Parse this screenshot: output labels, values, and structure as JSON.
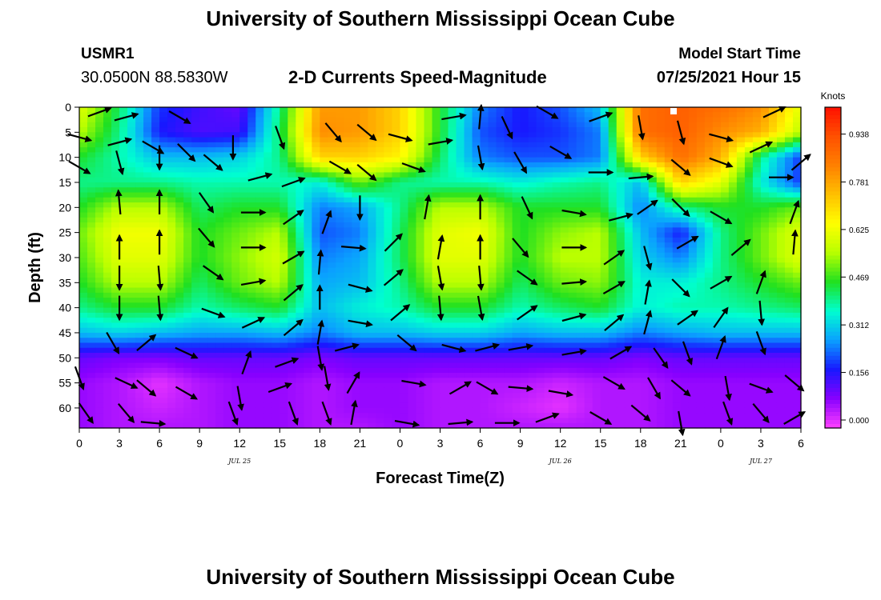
{
  "header": {
    "title": "University of Southern Mississippi Ocean Cube",
    "station_id": "USMR1",
    "station_coords": "30.0500N  88.5830W",
    "product": "2-D Currents Speed-Magnitude",
    "model_start_label": "Model Start Time",
    "model_start_value": "07/25/2021 Hour 15"
  },
  "footer": {
    "title": "University of Southern Mississippi Ocean Cube"
  },
  "chart_data": {
    "type": "heatmap",
    "title": "2-D Currents Speed-Magnitude",
    "xlabel": "Forecast Time(Z)",
    "ylabel": "Depth (ft)",
    "colorbar_label": "Knots",
    "x_tick_labels": [
      "0",
      "3",
      "6",
      "9",
      "12",
      "15",
      "18",
      "21",
      "0",
      "3",
      "6",
      "9",
      "12",
      "15",
      "18",
      "21",
      "0",
      "3",
      "6"
    ],
    "x_hours_range": [
      0,
      54
    ],
    "date_labels": [
      {
        "text": "JUL 25",
        "hour": 12
      },
      {
        "text": "JUL 26",
        "hour": 36
      },
      {
        "text": "JUL 27",
        "hour": 51
      }
    ],
    "y_ticks": [
      0,
      5,
      10,
      15,
      20,
      25,
      30,
      35,
      40,
      45,
      50,
      55,
      60
    ],
    "ylim": [
      0,
      64
    ],
    "y_inverted": true,
    "colorbar_ticks": [
      0.0,
      0.156,
      0.312,
      0.469,
      0.625,
      0.781,
      0.938
    ],
    "colorbar_range": [
      0,
      1.0
    ],
    "colormap": [
      "#ff40ff",
      "#8800ff",
      "#1818ff",
      "#0aa0ff",
      "#00ffd0",
      "#20e020",
      "#b8ff00",
      "#ffff00",
      "#ffc000",
      "#ff8000",
      "#ff5000",
      "#ff1000"
    ],
    "speed_grid_depths": [
      0,
      5,
      10,
      15,
      20,
      25,
      30,
      35,
      40,
      45,
      50,
      55,
      60,
      64
    ],
    "speed_grid_hours": [
      0,
      3,
      6,
      9,
      12,
      15,
      18,
      21,
      24,
      27,
      30,
      33,
      36,
      39,
      42,
      45,
      48,
      51,
      54
    ],
    "speed_grid": [
      [
        0.6,
        0.42,
        0.2,
        0.15,
        0.12,
        0.4,
        0.78,
        0.78,
        0.7,
        0.45,
        0.25,
        0.18,
        0.22,
        0.3,
        0.85,
        0.88,
        0.85,
        0.8,
        0.6
      ],
      [
        0.55,
        0.4,
        0.18,
        0.14,
        0.15,
        0.42,
        0.8,
        0.78,
        0.7,
        0.45,
        0.22,
        0.18,
        0.2,
        0.25,
        0.85,
        0.88,
        0.8,
        0.75,
        0.55
      ],
      [
        0.45,
        0.38,
        0.3,
        0.3,
        0.32,
        0.4,
        0.7,
        0.7,
        0.65,
        0.42,
        0.25,
        0.22,
        0.22,
        0.25,
        0.7,
        0.85,
        0.75,
        0.4,
        0.2
      ],
      [
        0.4,
        0.4,
        0.4,
        0.38,
        0.38,
        0.38,
        0.35,
        0.5,
        0.4,
        0.38,
        0.38,
        0.35,
        0.38,
        0.4,
        0.3,
        0.7,
        0.6,
        0.35,
        0.2
      ],
      [
        0.45,
        0.55,
        0.55,
        0.42,
        0.45,
        0.45,
        0.25,
        0.28,
        0.4,
        0.55,
        0.55,
        0.45,
        0.45,
        0.45,
        0.25,
        0.4,
        0.45,
        0.45,
        0.5
      ],
      [
        0.5,
        0.62,
        0.62,
        0.45,
        0.5,
        0.55,
        0.22,
        0.25,
        0.42,
        0.6,
        0.62,
        0.45,
        0.52,
        0.55,
        0.3,
        0.18,
        0.4,
        0.5,
        0.6
      ],
      [
        0.48,
        0.6,
        0.6,
        0.45,
        0.52,
        0.58,
        0.25,
        0.28,
        0.42,
        0.6,
        0.6,
        0.45,
        0.55,
        0.55,
        0.32,
        0.25,
        0.4,
        0.5,
        0.6
      ],
      [
        0.45,
        0.55,
        0.55,
        0.42,
        0.5,
        0.55,
        0.28,
        0.3,
        0.4,
        0.55,
        0.55,
        0.42,
        0.5,
        0.52,
        0.35,
        0.35,
        0.4,
        0.45,
        0.5
      ],
      [
        0.4,
        0.45,
        0.45,
        0.38,
        0.42,
        0.45,
        0.3,
        0.35,
        0.38,
        0.45,
        0.45,
        0.38,
        0.42,
        0.45,
        0.35,
        0.38,
        0.38,
        0.4,
        0.42
      ],
      [
        0.3,
        0.32,
        0.3,
        0.28,
        0.28,
        0.3,
        0.25,
        0.3,
        0.3,
        0.32,
        0.32,
        0.28,
        0.3,
        0.3,
        0.25,
        0.28,
        0.3,
        0.3,
        0.3
      ],
      [
        0.12,
        0.1,
        0.1,
        0.12,
        0.12,
        0.12,
        0.1,
        0.12,
        0.12,
        0.12,
        0.12,
        0.12,
        0.12,
        0.12,
        0.1,
        0.12,
        0.12,
        0.12,
        0.12
      ],
      [
        0.08,
        0.06,
        0.02,
        0.06,
        0.08,
        0.08,
        0.06,
        0.08,
        0.08,
        0.06,
        0.06,
        0.06,
        0.04,
        0.06,
        0.06,
        0.08,
        0.08,
        0.08,
        0.08
      ],
      [
        0.08,
        0.06,
        0.04,
        0.06,
        0.08,
        0.08,
        0.06,
        0.08,
        0.08,
        0.06,
        0.06,
        0.04,
        0.02,
        0.06,
        0.06,
        0.08,
        0.08,
        0.08,
        0.08
      ],
      [
        0.08,
        0.06,
        0.06,
        0.06,
        0.08,
        0.08,
        0.06,
        0.06,
        0.08,
        0.06,
        0.06,
        0.06,
        0.06,
        0.06,
        0.06,
        0.08,
        0.08,
        0.08,
        0.08
      ]
    ],
    "vectors": [
      {
        "hour": 1.5,
        "depth": 1,
        "angle": 20
      },
      {
        "hour": 3.5,
        "depth": 2,
        "angle": 15
      },
      {
        "hour": 7.5,
        "depth": 2,
        "angle": -30
      },
      {
        "hour": 0.0,
        "depth": 6,
        "angle": -15
      },
      {
        "hour": 3.0,
        "depth": 7,
        "angle": 15
      },
      {
        "hour": 5.5,
        "depth": 8,
        "angle": -30
      },
      {
        "hour": 8.0,
        "depth": 9,
        "angle": -45
      },
      {
        "hour": 11.5,
        "depth": 8,
        "angle": -90
      },
      {
        "hour": 15.0,
        "depth": 6,
        "angle": -70
      },
      {
        "hour": 19.0,
        "depth": 5,
        "angle": -50
      },
      {
        "hour": 21.5,
        "depth": 5,
        "angle": -40
      },
      {
        "hour": 24.0,
        "depth": 6,
        "angle": -15
      },
      {
        "hour": 28.0,
        "depth": 2,
        "angle": 10
      },
      {
        "hour": 30.0,
        "depth": 2,
        "angle": 85
      },
      {
        "hour": 32.0,
        "depth": 4,
        "angle": -65
      },
      {
        "hour": 35.0,
        "depth": 1,
        "angle": -30
      },
      {
        "hour": 39.0,
        "depth": 2,
        "angle": 20
      },
      {
        "hour": 42.0,
        "depth": 4,
        "angle": -80
      },
      {
        "hour": 45.0,
        "depth": 5,
        "angle": -75
      },
      {
        "hour": 48.0,
        "depth": 6,
        "angle": -15
      },
      {
        "hour": 52.0,
        "depth": 1,
        "angle": 25
      },
      {
        "hour": 0.0,
        "depth": 12,
        "angle": -30
      },
      {
        "hour": 3.0,
        "depth": 11,
        "angle": -75
      },
      {
        "hour": 6.0,
        "depth": 10,
        "angle": -90
      },
      {
        "hour": 10.0,
        "depth": 11,
        "angle": -40
      },
      {
        "hour": 13.5,
        "depth": 14,
        "angle": 15
      },
      {
        "hour": 16.0,
        "depth": 15,
        "angle": 20
      },
      {
        "hour": 19.5,
        "depth": 12,
        "angle": -30
      },
      {
        "hour": 21.5,
        "depth": 13,
        "angle": -40
      },
      {
        "hour": 25.0,
        "depth": 12,
        "angle": -20
      },
      {
        "hour": 27.0,
        "depth": 7,
        "angle": 10
      },
      {
        "hour": 30.0,
        "depth": 10,
        "angle": -80
      },
      {
        "hour": 33.0,
        "depth": 11,
        "angle": -60
      },
      {
        "hour": 36.0,
        "depth": 9,
        "angle": -30
      },
      {
        "hour": 39.0,
        "depth": 13,
        "angle": 0
      },
      {
        "hour": 42.0,
        "depth": 14,
        "angle": 5
      },
      {
        "hour": 45.0,
        "depth": 12,
        "angle": -40
      },
      {
        "hour": 48.0,
        "depth": 11,
        "angle": -20
      },
      {
        "hour": 51.0,
        "depth": 8,
        "angle": 25
      },
      {
        "hour": 52.5,
        "depth": 14,
        "angle": 0
      },
      {
        "hour": 54.0,
        "depth": 11,
        "angle": 40
      },
      {
        "hour": 3.0,
        "depth": 19,
        "angle": 95
      },
      {
        "hour": 6.0,
        "depth": 19,
        "angle": 90
      },
      {
        "hour": 9.5,
        "depth": 19,
        "angle": -55
      },
      {
        "hour": 13.0,
        "depth": 21,
        "angle": 0
      },
      {
        "hour": 16.0,
        "depth": 22,
        "angle": 35
      },
      {
        "hour": 18.5,
        "depth": 23,
        "angle": 70
      },
      {
        "hour": 21.0,
        "depth": 20,
        "angle": -90
      },
      {
        "hour": 26.0,
        "depth": 20,
        "angle": 80
      },
      {
        "hour": 30.0,
        "depth": 20,
        "angle": 90
      },
      {
        "hour": 33.5,
        "depth": 20,
        "angle": -65
      },
      {
        "hour": 37.0,
        "depth": 21,
        "angle": -10
      },
      {
        "hour": 40.5,
        "depth": 22,
        "angle": 15
      },
      {
        "hour": 42.5,
        "depth": 20,
        "angle": 35
      },
      {
        "hour": 45.0,
        "depth": 20,
        "angle": -45
      },
      {
        "hour": 48.0,
        "depth": 22,
        "angle": -30
      },
      {
        "hour": 53.5,
        "depth": 21,
        "angle": 70
      },
      {
        "hour": 3.0,
        "depth": 28,
        "angle": 90
      },
      {
        "hour": 6.0,
        "depth": 27,
        "angle": 90
      },
      {
        "hour": 9.5,
        "depth": 26,
        "angle": -50
      },
      {
        "hour": 13.0,
        "depth": 28,
        "angle": 0
      },
      {
        "hour": 16.0,
        "depth": 30,
        "angle": 30
      },
      {
        "hour": 18.0,
        "depth": 31,
        "angle": 85
      },
      {
        "hour": 20.5,
        "depth": 28,
        "angle": -5
      },
      {
        "hour": 23.5,
        "depth": 27,
        "angle": 45
      },
      {
        "hour": 27.0,
        "depth": 28,
        "angle": 80
      },
      {
        "hour": 30.0,
        "depth": 28,
        "angle": 90
      },
      {
        "hour": 33.0,
        "depth": 28,
        "angle": -50
      },
      {
        "hour": 37.0,
        "depth": 28,
        "angle": 0
      },
      {
        "hour": 40.0,
        "depth": 30,
        "angle": 35
      },
      {
        "hour": 42.5,
        "depth": 30,
        "angle": -75
      },
      {
        "hour": 45.5,
        "depth": 27,
        "angle": 30
      },
      {
        "hour": 49.5,
        "depth": 28,
        "angle": 40
      },
      {
        "hour": 53.5,
        "depth": 27,
        "angle": 85
      },
      {
        "hour": 3.0,
        "depth": 34,
        "angle": -90
      },
      {
        "hour": 6.0,
        "depth": 34,
        "angle": -85
      },
      {
        "hour": 10.0,
        "depth": 33,
        "angle": -35
      },
      {
        "hour": 13.0,
        "depth": 35,
        "angle": 10
      },
      {
        "hour": 16.0,
        "depth": 37,
        "angle": 40
      },
      {
        "hour": 18.0,
        "depth": 38,
        "angle": 90
      },
      {
        "hour": 21.0,
        "depth": 36,
        "angle": -15
      },
      {
        "hour": 23.5,
        "depth": 34,
        "angle": 40
      },
      {
        "hour": 27.0,
        "depth": 34,
        "angle": -80
      },
      {
        "hour": 30.0,
        "depth": 34,
        "angle": -85
      },
      {
        "hour": 33.5,
        "depth": 34,
        "angle": -35
      },
      {
        "hour": 37.0,
        "depth": 35,
        "angle": 5
      },
      {
        "hour": 40.0,
        "depth": 36,
        "angle": 30
      },
      {
        "hour": 42.5,
        "depth": 37,
        "angle": 80
      },
      {
        "hour": 45.0,
        "depth": 36,
        "angle": -45
      },
      {
        "hour": 48.0,
        "depth": 35,
        "angle": 30
      },
      {
        "hour": 51.0,
        "depth": 35,
        "angle": 70
      },
      {
        "hour": 3.0,
        "depth": 40,
        "angle": -90
      },
      {
        "hour": 6.0,
        "depth": 40,
        "angle": -85
      },
      {
        "hour": 10.0,
        "depth": 41,
        "angle": -20
      },
      {
        "hour": 13.0,
        "depth": 43,
        "angle": 25
      },
      {
        "hour": 16.0,
        "depth": 44,
        "angle": 40
      },
      {
        "hour": 18.0,
        "depth": 45,
        "angle": 80
      },
      {
        "hour": 21.0,
        "depth": 43,
        "angle": -10
      },
      {
        "hour": 24.0,
        "depth": 41,
        "angle": 40
      },
      {
        "hour": 27.0,
        "depth": 40,
        "angle": -85
      },
      {
        "hour": 30.0,
        "depth": 40,
        "angle": -80
      },
      {
        "hour": 33.5,
        "depth": 41,
        "angle": 35
      },
      {
        "hour": 37.0,
        "depth": 42,
        "angle": 15
      },
      {
        "hour": 40.0,
        "depth": 43,
        "angle": 40
      },
      {
        "hour": 42.5,
        "depth": 43,
        "angle": 75
      },
      {
        "hour": 45.5,
        "depth": 42,
        "angle": 35
      },
      {
        "hour": 48.0,
        "depth": 42,
        "angle": 55
      },
      {
        "hour": 51.0,
        "depth": 41,
        "angle": -85
      },
      {
        "hour": 2.5,
        "depth": 47,
        "angle": -60
      },
      {
        "hour": 5.0,
        "depth": 47,
        "angle": 40
      },
      {
        "hour": 8.0,
        "depth": 49,
        "angle": -25
      },
      {
        "hour": 12.5,
        "depth": 51,
        "angle": 70
      },
      {
        "hour": 15.5,
        "depth": 51,
        "angle": 20
      },
      {
        "hour": 18.0,
        "depth": 50,
        "angle": -80
      },
      {
        "hour": 20.0,
        "depth": 48,
        "angle": 15
      },
      {
        "hour": 24.5,
        "depth": 47,
        "angle": -40
      },
      {
        "hour": 28.0,
        "depth": 48,
        "angle": -15
      },
      {
        "hour": 30.5,
        "depth": 48,
        "angle": 15
      },
      {
        "hour": 33.0,
        "depth": 48,
        "angle": 10
      },
      {
        "hour": 37.0,
        "depth": 49,
        "angle": 10
      },
      {
        "hour": 40.5,
        "depth": 49,
        "angle": 30
      },
      {
        "hour": 43.5,
        "depth": 50,
        "angle": -55
      },
      {
        "hour": 45.5,
        "depth": 49,
        "angle": -70
      },
      {
        "hour": 48.0,
        "depth": 48,
        "angle": 70
      },
      {
        "hour": 51.0,
        "depth": 47,
        "angle": -70
      },
      {
        "hour": 0.0,
        "depth": 54,
        "angle": -70
      },
      {
        "hour": 3.5,
        "depth": 55,
        "angle": -25
      },
      {
        "hour": 5.0,
        "depth": 56,
        "angle": -40
      },
      {
        "hour": 8.0,
        "depth": 57,
        "angle": -30
      },
      {
        "hour": 12.0,
        "depth": 58,
        "angle": -80
      },
      {
        "hour": 15.0,
        "depth": 56,
        "angle": 20
      },
      {
        "hour": 18.5,
        "depth": 54,
        "angle": -80
      },
      {
        "hour": 20.5,
        "depth": 55,
        "angle": 60
      },
      {
        "hour": 25.0,
        "depth": 55,
        "angle": -10
      },
      {
        "hour": 28.5,
        "depth": 56,
        "angle": 30
      },
      {
        "hour": 30.5,
        "depth": 56,
        "angle": -30
      },
      {
        "hour": 33.0,
        "depth": 56,
        "angle": -5
      },
      {
        "hour": 36.0,
        "depth": 57,
        "angle": -10
      },
      {
        "hour": 40.0,
        "depth": 55,
        "angle": -30
      },
      {
        "hour": 43.0,
        "depth": 56,
        "angle": -60
      },
      {
        "hour": 45.0,
        "depth": 56,
        "angle": -40
      },
      {
        "hour": 48.5,
        "depth": 56,
        "angle": -80
      },
      {
        "hour": 51.0,
        "depth": 56,
        "angle": -20
      },
      {
        "hour": 53.5,
        "depth": 55,
        "angle": -40
      },
      {
        "hour": 0.5,
        "depth": 61,
        "angle": -55
      },
      {
        "hour": 3.5,
        "depth": 61,
        "angle": -50
      },
      {
        "hour": 5.5,
        "depth": 63,
        "angle": -5
      },
      {
        "hour": 11.5,
        "depth": 61,
        "angle": -70
      },
      {
        "hour": 16.0,
        "depth": 61,
        "angle": -70
      },
      {
        "hour": 18.5,
        "depth": 61,
        "angle": -70
      },
      {
        "hour": 20.5,
        "depth": 61,
        "angle": 80
      },
      {
        "hour": 24.5,
        "depth": 63,
        "angle": -10
      },
      {
        "hour": 28.5,
        "depth": 63,
        "angle": 5
      },
      {
        "hour": 32.0,
        "depth": 63,
        "angle": 0
      },
      {
        "hour": 35.0,
        "depth": 62,
        "angle": 20
      },
      {
        "hour": 39.0,
        "depth": 62,
        "angle": -30
      },
      {
        "hour": 42.0,
        "depth": 61,
        "angle": -40
      },
      {
        "hour": 45.0,
        "depth": 63,
        "angle": -80
      },
      {
        "hour": 48.5,
        "depth": 61,
        "angle": -70
      },
      {
        "hour": 51.0,
        "depth": 61,
        "angle": -50
      },
      {
        "hour": 53.5,
        "depth": 62,
        "angle": 30
      }
    ]
  }
}
